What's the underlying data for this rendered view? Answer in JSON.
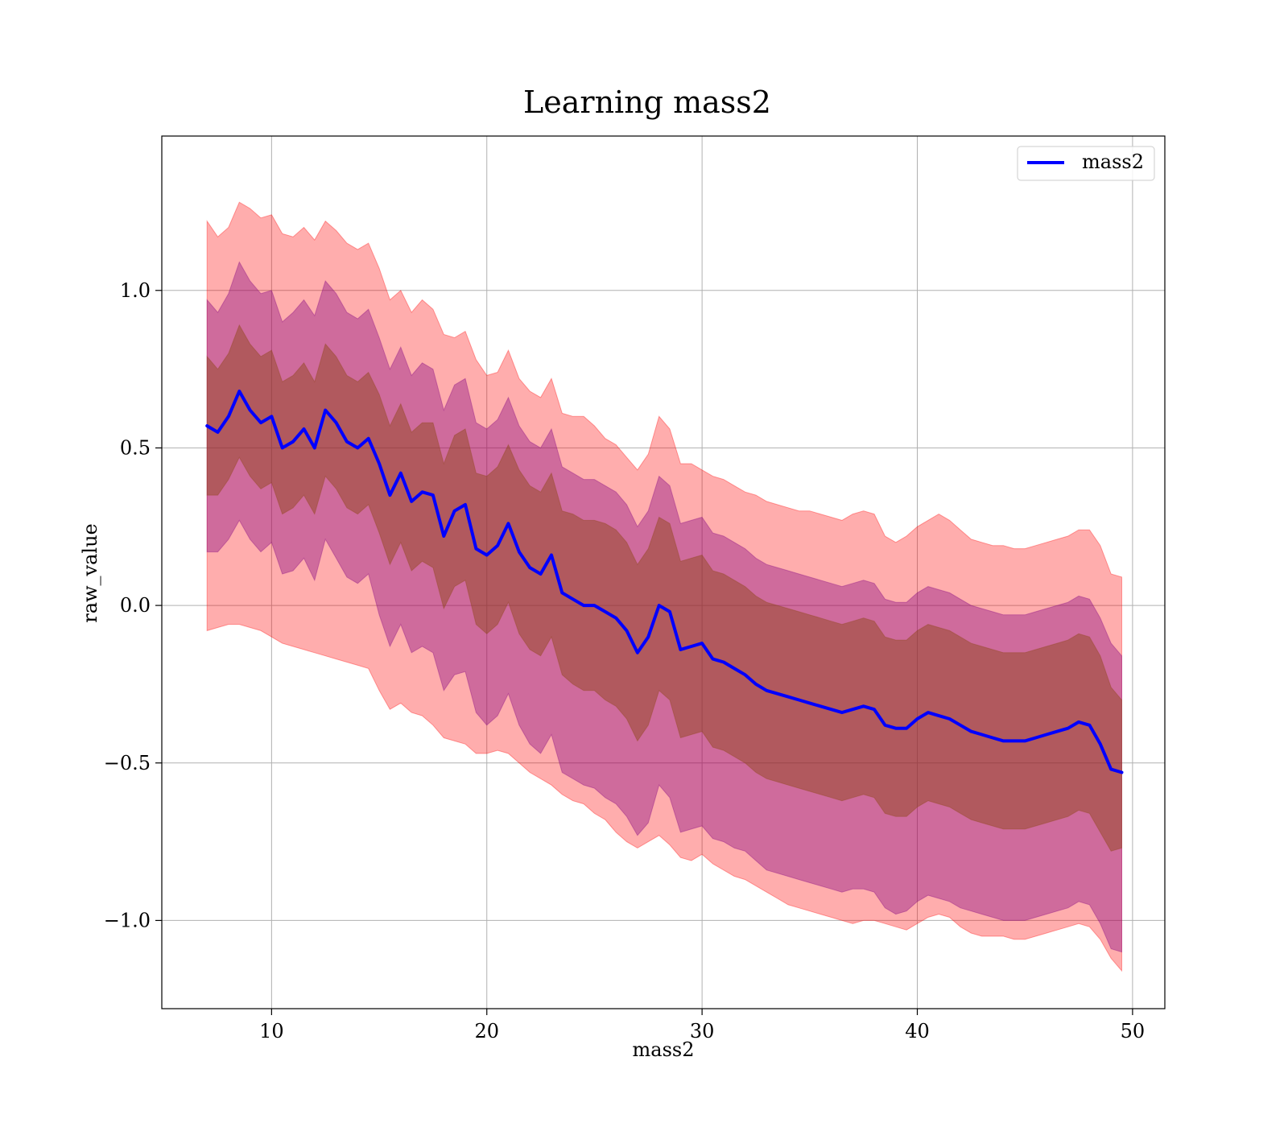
{
  "chart_data": {
    "type": "line",
    "title": "Learning mass2",
    "xlabel": "mass2",
    "ylabel": "raw_value",
    "xlim": [
      4.9,
      51.5
    ],
    "ylim": [
      -1.28,
      1.49
    ],
    "xticks": [
      10,
      20,
      30,
      40,
      50
    ],
    "xtick_labels": [
      "10",
      "20",
      "30",
      "40",
      "50"
    ],
    "yticks": [
      -1.0,
      -0.5,
      0.0,
      0.5,
      1.0
    ],
    "ytick_labels": [
      "−1.0",
      "−0.5",
      "0.0",
      "0.5",
      "1.0"
    ],
    "grid": true,
    "legend": {
      "position": "top-right",
      "entries": [
        "mass2"
      ]
    },
    "colors": {
      "line": "#0000ff",
      "band_outer": "#ff0000",
      "band_middle": "#800080",
      "band_inner": "#8b4513"
    },
    "series": [
      {
        "name": "mass2",
        "x": [
          7.0,
          7.5,
          8.0,
          8.5,
          9.0,
          9.5,
          10.0,
          10.5,
          11.0,
          11.5,
          12.0,
          12.5,
          13.0,
          13.5,
          14.0,
          14.5,
          15.0,
          15.5,
          16.0,
          16.5,
          17.0,
          17.5,
          18.0,
          18.5,
          19.0,
          19.5,
          20.0,
          20.5,
          21.0,
          21.5,
          22.0,
          22.5,
          23.0,
          23.5,
          24.0,
          24.5,
          25.0,
          25.5,
          26.0,
          26.5,
          27.0,
          27.5,
          28.0,
          28.5,
          29.0,
          29.5,
          30.0,
          30.5,
          31.0,
          31.5,
          32.0,
          32.5,
          33.0,
          33.5,
          34.0,
          34.5,
          35.0,
          35.5,
          36.0,
          36.5,
          37.0,
          37.5,
          38.0,
          38.5,
          39.0,
          39.5,
          40.0,
          40.5,
          41.0,
          41.5,
          42.0,
          42.5,
          43.0,
          43.5,
          44.0,
          44.5,
          45.0,
          45.5,
          46.0,
          46.5,
          47.0,
          47.5,
          48.0,
          48.5,
          49.0,
          49.5
        ],
        "y": [
          0.57,
          0.55,
          0.6,
          0.68,
          0.62,
          0.58,
          0.6,
          0.5,
          0.52,
          0.56,
          0.5,
          0.62,
          0.58,
          0.52,
          0.5,
          0.53,
          0.45,
          0.35,
          0.42,
          0.33,
          0.36,
          0.35,
          0.22,
          0.3,
          0.32,
          0.18,
          0.16,
          0.19,
          0.26,
          0.17,
          0.12,
          0.1,
          0.16,
          0.04,
          0.02,
          0.0,
          0.0,
          -0.02,
          -0.04,
          -0.08,
          -0.15,
          -0.1,
          0.0,
          -0.02,
          -0.14,
          -0.13,
          -0.12,
          -0.17,
          -0.18,
          -0.2,
          -0.22,
          -0.25,
          -0.27,
          -0.28,
          -0.29,
          -0.3,
          -0.31,
          -0.32,
          -0.33,
          -0.34,
          -0.33,
          -0.32,
          -0.33,
          -0.38,
          -0.39,
          -0.39,
          -0.36,
          -0.34,
          -0.35,
          -0.36,
          -0.38,
          -0.4,
          -0.41,
          -0.42,
          -0.43,
          -0.43,
          -0.43,
          -0.42,
          -0.41,
          -0.4,
          -0.39,
          -0.37,
          -0.38,
          -0.44,
          -0.52,
          -0.53
        ]
      }
    ],
    "bands": [
      {
        "lower": [
          -0.08,
          -0.07,
          -0.06,
          -0.06,
          -0.07,
          -0.08,
          -0.1,
          -0.12,
          -0.13,
          -0.14,
          -0.15,
          -0.16,
          -0.17,
          -0.18,
          -0.19,
          -0.2,
          -0.27,
          -0.33,
          -0.31,
          -0.34,
          -0.35,
          -0.38,
          -0.42,
          -0.43,
          -0.44,
          -0.47,
          -0.47,
          -0.46,
          -0.47,
          -0.5,
          -0.53,
          -0.55,
          -0.57,
          -0.6,
          -0.62,
          -0.63,
          -0.66,
          -0.68,
          -0.72,
          -0.75,
          -0.77,
          -0.75,
          -0.73,
          -0.76,
          -0.8,
          -0.81,
          -0.79,
          -0.82,
          -0.84,
          -0.86,
          -0.87,
          -0.89,
          -0.91,
          -0.93,
          -0.95,
          -0.96,
          -0.97,
          -0.98,
          -0.99,
          -1.0,
          -1.01,
          -1.0,
          -1.0,
          -1.01,
          -1.02,
          -1.03,
          -1.01,
          -0.99,
          -0.98,
          -0.99,
          -1.02,
          -1.04,
          -1.05,
          -1.05,
          -1.05,
          -1.06,
          -1.06,
          -1.05,
          -1.04,
          -1.03,
          -1.02,
          -1.01,
          -1.02,
          -1.06,
          -1.12,
          -1.16
        ],
        "upper": [
          1.22,
          1.17,
          1.2,
          1.28,
          1.26,
          1.23,
          1.24,
          1.18,
          1.17,
          1.2,
          1.16,
          1.22,
          1.19,
          1.15,
          1.13,
          1.15,
          1.07,
          0.97,
          1.0,
          0.93,
          0.97,
          0.94,
          0.86,
          0.85,
          0.87,
          0.78,
          0.73,
          0.74,
          0.81,
          0.72,
          0.68,
          0.66,
          0.72,
          0.61,
          0.6,
          0.6,
          0.57,
          0.53,
          0.51,
          0.47,
          0.43,
          0.48,
          0.6,
          0.56,
          0.45,
          0.45,
          0.43,
          0.41,
          0.4,
          0.38,
          0.36,
          0.35,
          0.33,
          0.32,
          0.31,
          0.3,
          0.3,
          0.29,
          0.28,
          0.27,
          0.29,
          0.3,
          0.29,
          0.22,
          0.2,
          0.22,
          0.25,
          0.27,
          0.29,
          0.27,
          0.24,
          0.21,
          0.2,
          0.19,
          0.19,
          0.18,
          0.18,
          0.19,
          0.2,
          0.21,
          0.22,
          0.24,
          0.24,
          0.19,
          0.1,
          0.09
        ],
        "color_key": "band_outer",
        "opacity": 0.32
      },
      {
        "lower": [
          0.17,
          0.17,
          0.21,
          0.27,
          0.21,
          0.17,
          0.2,
          0.1,
          0.11,
          0.15,
          0.08,
          0.21,
          0.15,
          0.09,
          0.07,
          0.1,
          -0.03,
          -0.13,
          -0.06,
          -0.15,
          -0.13,
          -0.15,
          -0.27,
          -0.22,
          -0.21,
          -0.34,
          -0.38,
          -0.35,
          -0.28,
          -0.38,
          -0.44,
          -0.47,
          -0.41,
          -0.53,
          -0.55,
          -0.57,
          -0.58,
          -0.61,
          -0.63,
          -0.67,
          -0.73,
          -0.69,
          -0.57,
          -0.61,
          -0.72,
          -0.71,
          -0.7,
          -0.74,
          -0.75,
          -0.77,
          -0.78,
          -0.81,
          -0.84,
          -0.85,
          -0.86,
          -0.87,
          -0.88,
          -0.89,
          -0.9,
          -0.91,
          -0.9,
          -0.9,
          -0.91,
          -0.96,
          -0.98,
          -0.97,
          -0.94,
          -0.92,
          -0.93,
          -0.94,
          -0.96,
          -0.97,
          -0.98,
          -0.99,
          -1.0,
          -1.0,
          -1.0,
          -0.99,
          -0.98,
          -0.97,
          -0.96,
          -0.94,
          -0.95,
          -1.01,
          -1.09,
          -1.1
        ],
        "upper": [
          0.97,
          0.93,
          0.99,
          1.09,
          1.03,
          0.99,
          1.0,
          0.9,
          0.93,
          0.97,
          0.92,
          1.03,
          0.99,
          0.93,
          0.91,
          0.94,
          0.85,
          0.75,
          0.82,
          0.73,
          0.77,
          0.75,
          0.62,
          0.7,
          0.72,
          0.58,
          0.56,
          0.59,
          0.66,
          0.57,
          0.52,
          0.5,
          0.56,
          0.44,
          0.42,
          0.4,
          0.4,
          0.38,
          0.36,
          0.32,
          0.25,
          0.3,
          0.41,
          0.38,
          0.26,
          0.27,
          0.28,
          0.23,
          0.22,
          0.2,
          0.18,
          0.15,
          0.13,
          0.12,
          0.11,
          0.1,
          0.09,
          0.08,
          0.07,
          0.06,
          0.07,
          0.08,
          0.07,
          0.02,
          0.01,
          0.01,
          0.04,
          0.06,
          0.05,
          0.04,
          0.02,
          0.0,
          -0.01,
          -0.02,
          -0.03,
          -0.03,
          -0.03,
          -0.02,
          -0.01,
          0.0,
          0.01,
          0.03,
          0.02,
          -0.04,
          -0.12,
          -0.16
        ],
        "color_key": "band_middle",
        "opacity": 0.38
      },
      {
        "lower": [
          0.35,
          0.35,
          0.4,
          0.47,
          0.41,
          0.37,
          0.39,
          0.29,
          0.31,
          0.35,
          0.29,
          0.41,
          0.37,
          0.31,
          0.29,
          0.32,
          0.23,
          0.13,
          0.2,
          0.11,
          0.14,
          0.12,
          -0.01,
          0.06,
          0.08,
          -0.06,
          -0.09,
          -0.06,
          0.01,
          -0.09,
          -0.14,
          -0.16,
          -0.1,
          -0.22,
          -0.25,
          -0.27,
          -0.27,
          -0.3,
          -0.32,
          -0.36,
          -0.43,
          -0.38,
          -0.27,
          -0.3,
          -0.42,
          -0.41,
          -0.4,
          -0.45,
          -0.46,
          -0.48,
          -0.5,
          -0.53,
          -0.55,
          -0.56,
          -0.57,
          -0.58,
          -0.59,
          -0.6,
          -0.61,
          -0.62,
          -0.61,
          -0.6,
          -0.61,
          -0.66,
          -0.67,
          -0.67,
          -0.64,
          -0.62,
          -0.63,
          -0.64,
          -0.66,
          -0.68,
          -0.69,
          -0.7,
          -0.71,
          -0.71,
          -0.71,
          -0.7,
          -0.69,
          -0.68,
          -0.67,
          -0.65,
          -0.66,
          -0.72,
          -0.78,
          -0.77
        ],
        "upper": [
          0.79,
          0.75,
          0.8,
          0.89,
          0.83,
          0.79,
          0.81,
          0.71,
          0.73,
          0.77,
          0.71,
          0.83,
          0.79,
          0.73,
          0.71,
          0.74,
          0.67,
          0.57,
          0.64,
          0.55,
          0.58,
          0.58,
          0.45,
          0.54,
          0.56,
          0.42,
          0.41,
          0.44,
          0.51,
          0.43,
          0.38,
          0.36,
          0.42,
          0.3,
          0.29,
          0.27,
          0.27,
          0.26,
          0.24,
          0.2,
          0.13,
          0.18,
          0.28,
          0.26,
          0.14,
          0.15,
          0.16,
          0.11,
          0.1,
          0.08,
          0.06,
          0.03,
          0.01,
          0.0,
          -0.01,
          -0.02,
          -0.03,
          -0.04,
          -0.05,
          -0.06,
          -0.05,
          -0.04,
          -0.05,
          -0.1,
          -0.11,
          -0.11,
          -0.08,
          -0.06,
          -0.07,
          -0.08,
          -0.1,
          -0.12,
          -0.13,
          -0.14,
          -0.15,
          -0.15,
          -0.15,
          -0.14,
          -0.13,
          -0.12,
          -0.11,
          -0.09,
          -0.1,
          -0.16,
          -0.26,
          -0.3
        ],
        "color_key": "band_inner",
        "opacity": 0.45
      }
    ]
  }
}
